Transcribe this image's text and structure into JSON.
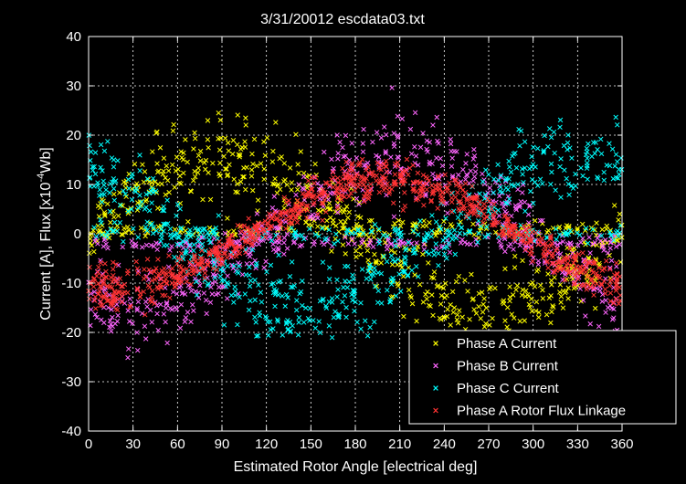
{
  "chart_data": {
    "type": "scatter",
    "title": "3/31/20012 escdata03.txt",
    "xlabel": "Estimated Rotor Angle [electrical deg]",
    "ylabel_parts": [
      "Current [A], Flux [x10",
      "-4",
      "Wb]"
    ],
    "xlim": [
      0,
      360
    ],
    "ylim": [
      -40,
      40
    ],
    "xticks": [
      0,
      30,
      60,
      90,
      120,
      150,
      180,
      210,
      240,
      270,
      300,
      330,
      360
    ],
    "yticks": [
      -40,
      -30,
      -20,
      -10,
      0,
      10,
      20,
      30,
      40
    ],
    "grid": true,
    "legend_position": "bottom-right",
    "marker": "x",
    "series": [
      {
        "name": "Phase A Current",
        "color": "#ffff00",
        "amplitude": 18,
        "phase_deg": 90,
        "spread": 5,
        "zero_cluster": 1,
        "count": 700
      },
      {
        "name": "Phase B Current",
        "color": "#ff66ff",
        "amplitude": 18,
        "phase_deg": 210,
        "spread": 5,
        "zero_cluster": -2,
        "count": 700
      },
      {
        "name": "Phase C Current",
        "color": "#00ffff",
        "amplitude": 18,
        "phase_deg": 330,
        "spread": 5,
        "zero_cluster": 0,
        "count": 700
      },
      {
        "name": "Phase A Rotor Flux Linkage",
        "color": "#ff3333",
        "amplitude": 13,
        "phase_deg": 200,
        "spread": 2,
        "zero_cluster": null,
        "count": 900
      }
    ]
  }
}
